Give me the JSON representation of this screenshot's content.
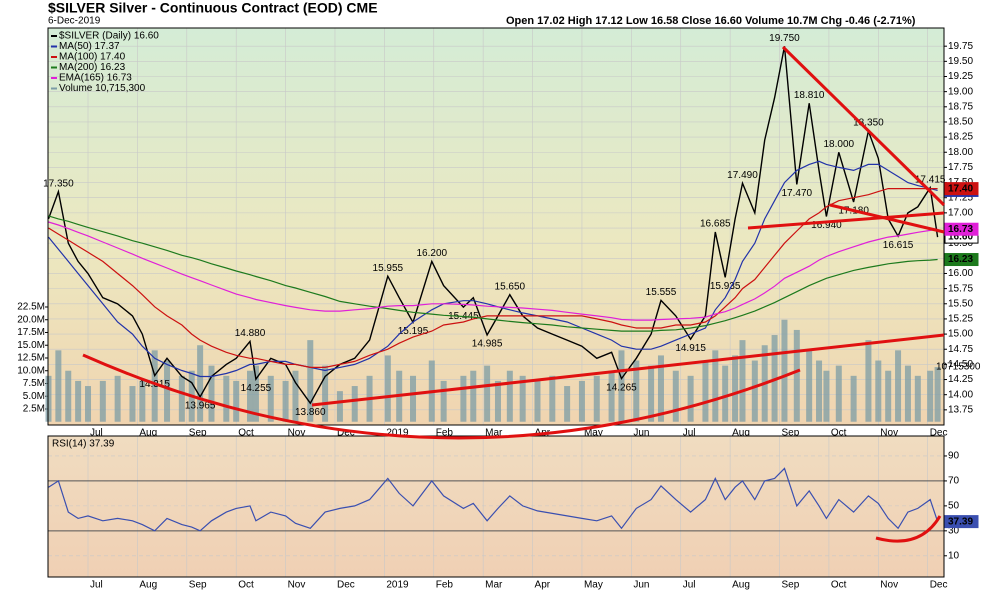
{
  "chart_data": [
    {
      "type": "line",
      "title": "$SILVER Silver - Continuous Contract (EOD) CME",
      "subtitle": "6-Dec-2019",
      "header": "Open 17.02 High 17.12 Low 16.58 Close 16.60 Volume 10.7M Chg -0.46 (-2.71%)",
      "x": [
        -0.8,
        -0.6,
        -0.4,
        -0.2,
        0,
        0.3,
        0.6,
        0.9,
        1.1,
        1.35,
        1.6,
        1.9,
        2.1,
        2.27,
        2.5,
        2.8,
        3.0,
        3.28,
        3.4,
        3.7,
        4.0,
        4.2,
        4.5,
        4.8,
        5.1,
        5.4,
        5.7,
        6.07,
        6.3,
        6.58,
        6.96,
        7.2,
        7.6,
        7.8,
        8.08,
        8.3,
        8.54,
        8.8,
        9.1,
        9.4,
        9.7,
        10.0,
        10.3,
        10.6,
        10.8,
        11.1,
        11.4,
        11.6,
        11.9,
        12.2,
        12.5,
        12.7,
        12.9,
        13.1,
        13.25,
        13.5,
        13.7,
        13.9,
        14.1,
        14.35,
        14.6,
        14.8,
        14.95,
        15.2,
        15.5,
        15.8,
        16.0,
        16.2,
        16.4,
        16.6,
        16.8,
        17.05,
        17.2
      ],
      "xlim": [
        -0.81,
        17.33
      ],
      "xticks": [
        {
          "value": 0,
          "label": "Jul"
        },
        {
          "value": 1,
          "label": "Aug"
        },
        {
          "value": 2,
          "label": "Sep"
        },
        {
          "value": 3,
          "label": "Oct"
        },
        {
          "value": 4,
          "label": "Nov"
        },
        {
          "value": 5,
          "label": "Dec"
        },
        {
          "value": 6,
          "label": "2019"
        },
        {
          "value": 7,
          "label": "Feb"
        },
        {
          "value": 8,
          "label": "Mar"
        },
        {
          "value": 9,
          "label": "Apr"
        },
        {
          "value": 10,
          "label": "May"
        },
        {
          "value": 11,
          "label": "Jun"
        },
        {
          "value": 12,
          "label": "Jul"
        },
        {
          "value": 13,
          "label": "Aug"
        },
        {
          "value": 14,
          "label": "Sep"
        },
        {
          "value": 15,
          "label": "Oct"
        },
        {
          "value": 16,
          "label": "Nov"
        },
        {
          "value": 17,
          "label": "Dec"
        }
      ],
      "ylim": [
        13.5,
        20.05
      ],
      "yticks": [
        13.75,
        {
          "value": 14,
          "label": "14.00"
        },
        14.25,
        {
          "value": 14.5,
          "label": "14.50"
        },
        14.75,
        {
          "value": 15,
          "label": "15.00"
        },
        15.25,
        {
          "value": 15.5,
          "label": "15.50"
        },
        15.75,
        {
          "value": 16,
          "label": "16.00"
        },
        16.25,
        {
          "value": 16.5,
          "label": "16.50"
        },
        16.75,
        {
          "value": 17,
          "label": "17.00"
        },
        17.25,
        {
          "value": 17.5,
          "label": "17.50"
        },
        17.75,
        {
          "value": 18,
          "label": "18.00"
        },
        18.25,
        {
          "value": 18.5,
          "label": "18.50"
        },
        18.75,
        {
          "value": 19,
          "label": "19.00"
        },
        19.25,
        {
          "value": 19.5,
          "label": "19.50"
        },
        19.75
      ],
      "y2lim": [
        -0.64,
        77.2
      ],
      "y2ticks": [
        {
          "value": 2.5,
          "label": "2.5M"
        },
        {
          "value": 5,
          "label": "5.0M"
        },
        {
          "value": 7.5,
          "label": "7.5M"
        },
        {
          "value": 10,
          "label": "10.0M"
        },
        {
          "value": 12.5,
          "label": "12.5M"
        },
        {
          "value": 15,
          "label": "15.0M"
        },
        {
          "value": 17.5,
          "label": "17.5M"
        },
        {
          "value": 20,
          "label": "20.0M"
        },
        {
          "value": 22.5,
          "label": "22.5M"
        }
      ],
      "grid": true,
      "series": [
        {
          "name": "$SILVER (Daily) 16.60",
          "color": "#000000",
          "last_label": "16.60",
          "values": [
            16.9,
            17.35,
            16.5,
            16.2,
            16.0,
            15.6,
            15.5,
            15.3,
            15.0,
            14.315,
            14.6,
            14.3,
            14.2,
            13.965,
            14.3,
            14.5,
            14.6,
            14.88,
            14.255,
            14.6,
            14.5,
            14.2,
            13.86,
            14.3,
            14.5,
            14.6,
            14.9,
            15.955,
            15.6,
            15.195,
            16.2,
            15.8,
            15.445,
            15.6,
            14.985,
            15.3,
            15.65,
            15.3,
            15.1,
            15.0,
            14.9,
            14.8,
            14.6,
            14.7,
            14.265,
            14.6,
            15.0,
            15.555,
            15.3,
            14.915,
            15.3,
            16.685,
            15.935,
            16.9,
            17.49,
            17.0,
            18.2,
            18.9,
            19.75,
            17.47,
            18.81,
            17.7,
            16.94,
            18.0,
            17.18,
            18.35,
            17.9,
            16.9,
            16.615,
            17.0,
            17.1,
            17.415,
            16.6
          ],
          "value_labels": [
            null,
            "17.350",
            null,
            null,
            null,
            null,
            null,
            null,
            null,
            "14.315",
            null,
            null,
            null,
            "13.965",
            null,
            null,
            null,
            "14.880",
            "14.255",
            null,
            null,
            null,
            "13.860",
            null,
            null,
            null,
            null,
            "15.955",
            null,
            "15.195",
            "16.200",
            null,
            "15.445",
            null,
            "14.985",
            null,
            "15.650",
            null,
            null,
            null,
            null,
            null,
            null,
            null,
            "14.265",
            null,
            null,
            "15.555",
            null,
            "14.915",
            null,
            "16.685",
            "15.935",
            null,
            "17.490",
            null,
            null,
            null,
            "19.750",
            "17.470",
            "18.810",
            null,
            "16.940",
            "18.000",
            "17.180",
            "18.350",
            null,
            null,
            "16.615",
            null,
            null,
            "17.415",
            null
          ]
        },
        {
          "name": "MA(50) 17.37",
          "color": "#2233aa",
          "last_label": "17.37",
          "values": [
            16.6,
            16.4,
            16.2,
            16.0,
            15.8,
            15.5,
            15.2,
            15.0,
            14.8,
            14.6,
            14.5,
            14.4,
            14.35,
            14.3,
            14.3,
            14.35,
            14.4,
            14.5,
            14.5,
            14.55,
            14.55,
            14.5,
            14.45,
            14.4,
            14.45,
            14.5,
            14.6,
            14.8,
            15.0,
            15.2,
            15.4,
            15.5,
            15.55,
            15.55,
            15.5,
            15.45,
            15.4,
            15.35,
            15.3,
            15.25,
            15.2,
            15.1,
            15.0,
            14.9,
            14.8,
            14.75,
            14.75,
            14.8,
            14.9,
            15.0,
            15.1,
            15.4,
            15.6,
            15.9,
            16.2,
            16.5,
            16.9,
            17.2,
            17.5,
            17.7,
            17.8,
            17.85,
            17.8,
            17.75,
            17.7,
            17.8,
            17.8,
            17.7,
            17.6,
            17.5,
            17.45,
            17.4,
            17.37
          ]
        },
        {
          "name": "MA(100) 17.40",
          "color": "#cc1111",
          "last_label": "17.40",
          "values": [
            16.75,
            16.65,
            16.55,
            16.45,
            16.35,
            16.2,
            16.0,
            15.8,
            15.65,
            15.45,
            15.3,
            15.15,
            15.0,
            14.9,
            14.8,
            14.7,
            14.65,
            14.6,
            14.6,
            14.55,
            14.5,
            14.5,
            14.45,
            14.45,
            14.5,
            14.55,
            14.65,
            14.75,
            14.85,
            14.95,
            15.05,
            15.15,
            15.2,
            15.25,
            15.3,
            15.3,
            15.3,
            15.3,
            15.3,
            15.3,
            15.3,
            15.3,
            15.25,
            15.2,
            15.15,
            15.1,
            15.1,
            15.1,
            15.15,
            15.15,
            15.2,
            15.3,
            15.45,
            15.6,
            15.75,
            15.9,
            16.1,
            16.3,
            16.5,
            16.7,
            16.9,
            17.0,
            17.1,
            17.2,
            17.25,
            17.3,
            17.35,
            17.4,
            17.4,
            17.4,
            17.4,
            17.4,
            17.4
          ]
        },
        {
          "name": "MA(200) 16.23",
          "color": "#1d7a1d",
          "last_label": "16.23",
          "values": [
            16.95,
            16.9,
            16.86,
            16.81,
            16.76,
            16.69,
            16.62,
            16.54,
            16.5,
            16.44,
            16.38,
            16.3,
            16.26,
            16.22,
            16.16,
            16.09,
            16.04,
            15.98,
            15.95,
            15.88,
            15.8,
            15.76,
            15.69,
            15.62,
            15.54,
            15.5,
            15.46,
            15.42,
            15.39,
            15.36,
            15.33,
            15.31,
            15.29,
            15.28,
            15.25,
            15.23,
            15.21,
            15.19,
            15.17,
            15.15,
            15.12,
            15.1,
            15.08,
            15.06,
            15.05,
            15.05,
            15.05,
            15.06,
            15.07,
            15.1,
            15.14,
            15.18,
            15.22,
            15.27,
            15.31,
            15.38,
            15.45,
            15.52,
            15.6,
            15.7,
            15.8,
            15.87,
            15.92,
            15.98,
            16.05,
            16.1,
            16.13,
            16.16,
            16.18,
            16.2,
            16.21,
            16.22,
            16.23
          ]
        },
        {
          "name": "EMA(165) 16.73",
          "color": "#e020d8",
          "last_label": "16.73",
          "values": [
            16.85,
            16.8,
            16.74,
            16.68,
            16.62,
            16.52,
            16.42,
            16.32,
            16.25,
            16.17,
            16.09,
            15.99,
            15.93,
            15.88,
            15.81,
            15.72,
            15.66,
            15.6,
            15.57,
            15.52,
            15.47,
            15.44,
            15.4,
            15.38,
            15.38,
            15.4,
            15.42,
            15.46,
            15.47,
            15.47,
            15.5,
            15.5,
            15.49,
            15.48,
            15.46,
            15.45,
            15.44,
            15.43,
            15.41,
            15.39,
            15.36,
            15.33,
            15.3,
            15.27,
            15.24,
            15.23,
            15.23,
            15.24,
            15.25,
            15.26,
            15.28,
            15.33,
            15.37,
            15.43,
            15.49,
            15.58,
            15.68,
            15.79,
            15.92,
            16.02,
            16.12,
            16.22,
            16.28,
            16.36,
            16.44,
            16.52,
            16.56,
            16.6,
            16.62,
            16.65,
            16.68,
            16.71,
            16.73
          ]
        },
        {
          "name": "Volume 10,715,300",
          "color": "#7c9ca6",
          "type": "bar",
          "axis": "y2",
          "last_label": "10715300",
          "values": [
            9,
            14,
            10,
            8,
            7,
            8,
            9,
            7,
            8,
            14,
            12,
            9,
            10,
            15,
            11,
            9,
            8,
            10,
            11,
            9,
            8,
            10,
            16,
            11,
            6,
            7,
            9,
            13,
            10,
            9,
            12,
            8,
            9,
            10,
            11,
            8,
            10,
            9,
            8,
            9,
            7,
            8,
            9,
            10,
            14,
            12,
            11,
            13,
            10,
            9,
            12,
            14,
            11,
            13,
            16,
            12,
            15,
            17,
            20,
            18,
            14,
            12,
            10,
            11,
            9,
            16,
            12,
            10,
            14,
            11,
            9,
            10,
            10.7153
          ]
        }
      ]
    },
    {
      "type": "line",
      "title": "RSI(14) 37.39",
      "x": [
        -0.8,
        -0.6,
        -0.4,
        -0.2,
        0,
        0.3,
        0.6,
        0.9,
        1.1,
        1.35,
        1.6,
        1.9,
        2.1,
        2.27,
        2.5,
        2.8,
        3.0,
        3.28,
        3.4,
        3.7,
        4.0,
        4.2,
        4.5,
        4.8,
        5.1,
        5.4,
        5.7,
        6.07,
        6.3,
        6.58,
        6.96,
        7.2,
        7.6,
        7.8,
        8.08,
        8.3,
        8.54,
        8.8,
        9.1,
        9.4,
        9.7,
        10.0,
        10.3,
        10.6,
        10.8,
        11.1,
        11.4,
        11.6,
        11.9,
        12.2,
        12.5,
        12.7,
        12.9,
        13.1,
        13.25,
        13.5,
        13.7,
        13.9,
        14.1,
        14.35,
        14.6,
        14.8,
        14.95,
        15.2,
        15.5,
        15.8,
        16.0,
        16.2,
        16.4,
        16.6,
        16.8,
        17.05,
        17.2
      ],
      "xlim": [
        -0.81,
        17.33
      ],
      "xticks": [
        {
          "value": 0,
          "label": "Jul"
        },
        {
          "value": 1,
          "label": "Aug"
        },
        {
          "value": 2,
          "label": "Sep"
        },
        {
          "value": 3,
          "label": "Oct"
        },
        {
          "value": 4,
          "label": "Nov"
        },
        {
          "value": 5,
          "label": "Dec"
        },
        {
          "value": 6,
          "label": "2019"
        },
        {
          "value": 7,
          "label": "Feb"
        },
        {
          "value": 8,
          "label": "Mar"
        },
        {
          "value": 9,
          "label": "Apr"
        },
        {
          "value": 10,
          "label": "May"
        },
        {
          "value": 11,
          "label": "Jun"
        },
        {
          "value": 12,
          "label": "Jul"
        },
        {
          "value": 13,
          "label": "Aug"
        },
        {
          "value": 14,
          "label": "Sep"
        },
        {
          "value": 15,
          "label": "Oct"
        },
        {
          "value": 16,
          "label": "Nov"
        },
        {
          "value": 17,
          "label": "Dec"
        }
      ],
      "ylim": [
        -7,
        106
      ],
      "yticks": [
        10,
        30,
        50,
        70,
        90
      ],
      "thresholds": [
        30,
        70
      ],
      "grid": true,
      "series": [
        {
          "color": "#3a4fb0",
          "last_label": "37.39",
          "values": [
            65,
            70,
            45,
            40,
            42,
            38,
            40,
            38,
            35,
            30,
            40,
            35,
            33,
            30,
            38,
            45,
            48,
            50,
            38,
            45,
            42,
            36,
            32,
            45,
            48,
            50,
            55,
            72,
            60,
            50,
            70,
            58,
            48,
            52,
            38,
            48,
            58,
            50,
            46,
            44,
            42,
            40,
            38,
            42,
            32,
            48,
            55,
            66,
            55,
            45,
            55,
            72,
            55,
            65,
            70,
            55,
            70,
            72,
            80,
            50,
            62,
            50,
            40,
            55,
            45,
            58,
            52,
            40,
            32,
            45,
            48,
            55,
            37.39
          ]
        }
      ]
    }
  ]
}
